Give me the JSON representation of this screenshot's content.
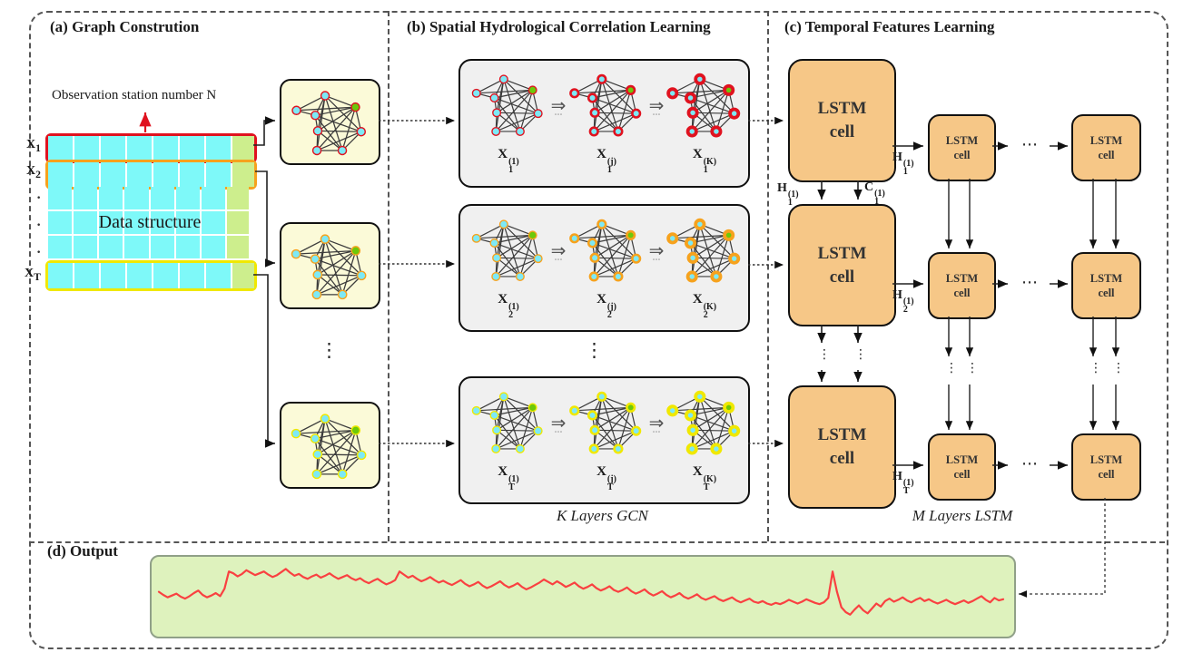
{
  "panels": {
    "a": "(a) Graph Constrution",
    "b": "(b) Spatial Hydrological Correlation Learning",
    "c": "(c) Temporal Features Learning",
    "d": "(d) Output"
  },
  "graph_construction": {
    "annotation": "Observation station number N",
    "matrix_label": "Data structure",
    "rows": [
      {
        "base": "X",
        "sub": "1"
      },
      {
        "base": "X",
        "sub": "2"
      },
      {
        "base": "X",
        "sub": "T"
      }
    ]
  },
  "gcn": {
    "caption": "K Layers GCN",
    "rows": [
      {
        "labels": [
          {
            "base": "X",
            "sub": "1",
            "sup": "(1)"
          },
          {
            "base": "X",
            "sub": "1",
            "sup": "(j)"
          },
          {
            "base": "X",
            "sub": "1",
            "sup": "(K)"
          }
        ]
      },
      {
        "labels": [
          {
            "base": "X",
            "sub": "2",
            "sup": "(1)"
          },
          {
            "base": "X",
            "sub": "2",
            "sup": "(j)"
          },
          {
            "base": "X",
            "sub": "2",
            "sup": "(K)"
          }
        ]
      },
      {
        "labels": [
          {
            "base": "X",
            "sub": "T",
            "sup": "(1)"
          },
          {
            "base": "X",
            "sub": "T",
            "sup": "(j)"
          },
          {
            "base": "X",
            "sub": "T",
            "sup": "(K)"
          }
        ]
      }
    ]
  },
  "lstm": {
    "caption": "M Layers LSTM",
    "cell_line1": "LSTM",
    "cell_line2": "cell",
    "labels": {
      "h1_out": {
        "base": "H",
        "sub": "1",
        "sup": "(1)"
      },
      "h1_down": {
        "base": "H",
        "sub": "1",
        "sup": "(1)"
      },
      "c1_down": {
        "base": "C",
        "sub": "1",
        "sup": "(1)"
      },
      "h2_out": {
        "base": "H",
        "sub": "2",
        "sup": "(1)"
      },
      "ht_out": {
        "base": "H",
        "sub": "T",
        "sup": "(1)"
      }
    }
  },
  "output": {
    "series": [
      55,
      50,
      46,
      49,
      52,
      47,
      44,
      48,
      53,
      57,
      50,
      46,
      49,
      53,
      48,
      60,
      88,
      85,
      80,
      84,
      90,
      86,
      82,
      85,
      88,
      83,
      79,
      82,
      87,
      92,
      86,
      81,
      84,
      79,
      76,
      80,
      83,
      78,
      81,
      85,
      80,
      76,
      79,
      82,
      77,
      74,
      77,
      72,
      69,
      73,
      76,
      71,
      67,
      70,
      74,
      88,
      83,
      78,
      81,
      76,
      72,
      75,
      79,
      74,
      70,
      73,
      69,
      66,
      70,
      74,
      68,
      64,
      67,
      71,
      65,
      61,
      64,
      68,
      72,
      66,
      62,
      65,
      69,
      63,
      59,
      62,
      66,
      70,
      75,
      71,
      67,
      72,
      68,
      63,
      66,
      70,
      64,
      60,
      63,
      67,
      61,
      57,
      60,
      64,
      58,
      55,
      58,
      62,
      56,
      52,
      55,
      59,
      53,
      49,
      52,
      56,
      50,
      46,
      49,
      53,
      47,
      44,
      47,
      51,
      45,
      42,
      45,
      48,
      43,
      40,
      43,
      46,
      41,
      38,
      41,
      44,
      39,
      37,
      40,
      36,
      34,
      37,
      35,
      38,
      42,
      39,
      36,
      39,
      43,
      40,
      37,
      35,
      38,
      45,
      88,
      55,
      30,
      22,
      18,
      26,
      33,
      25,
      20,
      28,
      36,
      31,
      40,
      44,
      39,
      42,
      46,
      41,
      38,
      42,
      45,
      40,
      43,
      39,
      36,
      39,
      42,
      38,
      35,
      38,
      41,
      37,
      40,
      44,
      48,
      42,
      38,
      45,
      41,
      43
    ]
  },
  "icons": {
    "stage_arrow": "⇒",
    "hdots": "⋯",
    "vdots": "⋮",
    "dot": "·"
  },
  "colors": {
    "ring_red": "#e0121f",
    "ring_orange": "#f6a21d",
    "ring_yellow": "#f0e800",
    "node_cyan": "#7de9f6",
    "node_green": "#6cc80a",
    "edge": "#3c3c3c",
    "matrix_cyan": "#7ef9f9",
    "matrix_green": "#cdee8d",
    "thumb_bg": "#fbfad8",
    "gcn_box_bg": "#f0f0f0",
    "lstm_fill": "#f6c787",
    "output_bg": "#def2bd",
    "output_line": "#f94141"
  }
}
